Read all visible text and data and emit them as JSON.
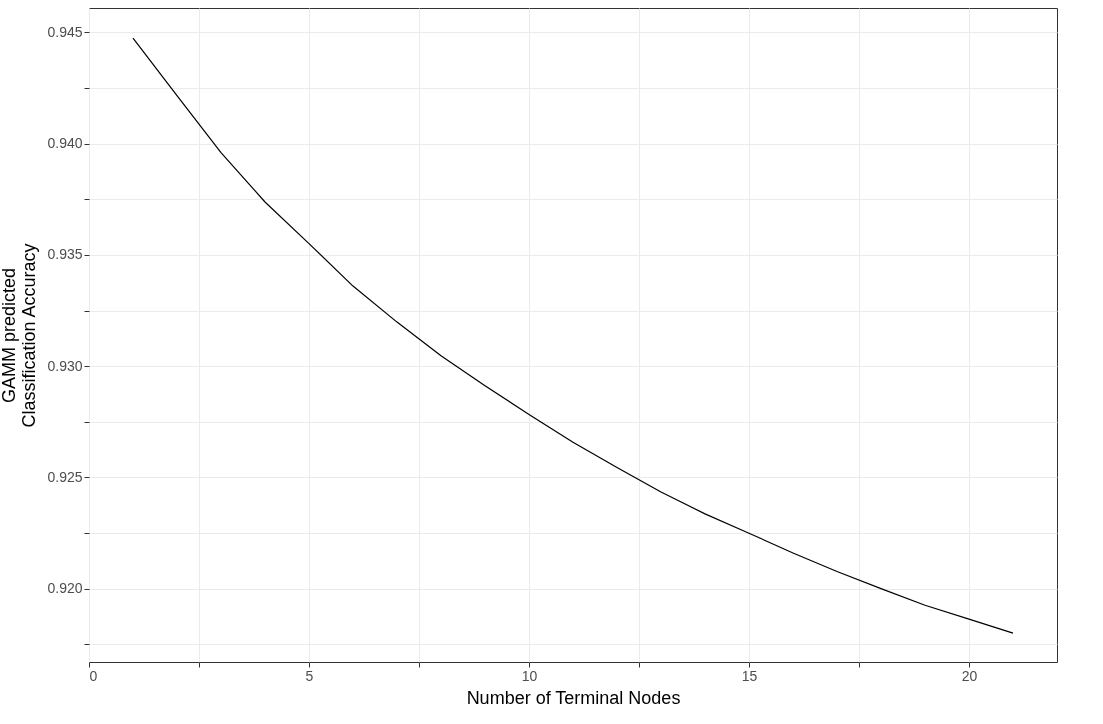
{
  "chart_data": {
    "type": "line",
    "xlabel": "Number of Terminal Nodes",
    "ylabel": "GAMM predicted\nClassification Accuracy",
    "x": [
      1,
      2,
      3,
      4,
      5,
      6,
      7,
      8,
      9,
      10,
      11,
      12,
      13,
      14,
      15,
      16,
      17,
      18,
      19,
      20,
      21
    ],
    "series": [
      {
        "color": "#000000",
        "values": [
          0.94475,
          0.94216,
          0.9396,
          0.93738,
          0.93551,
          0.9336,
          0.93198,
          0.93047,
          0.92912,
          0.92783,
          0.92658,
          0.92544,
          0.92434,
          0.92336,
          0.92249,
          0.9216,
          0.92077,
          0.92,
          0.91925,
          0.91863,
          0.918
        ]
      }
    ],
    "xlim": [
      0,
      22
    ],
    "ylim": [
      0.9167,
      0.9461
    ],
    "xticks": [
      0,
      {
        "value": 2.5,
        "label": null
      },
      5,
      {
        "value": 7.5,
        "label": null
      },
      10,
      {
        "value": 12.5,
        "label": null
      },
      15,
      {
        "value": 17.5,
        "label": null
      },
      20
    ],
    "yticks": [
      {
        "value": 0.9175,
        "label": null
      },
      {
        "value": 0.92,
        "label": "0.920"
      },
      {
        "value": 0.9225,
        "label": null
      },
      0.925,
      {
        "value": 0.9275,
        "label": null
      },
      {
        "value": 0.93,
        "label": "0.930"
      },
      {
        "value": 0.9325,
        "label": null
      },
      0.935,
      {
        "value": 0.9375,
        "label": null
      },
      {
        "value": 0.94,
        "label": "0.940"
      },
      {
        "value": 0.9425,
        "label": null
      },
      0.945
    ],
    "grid": true,
    "marker": "none",
    "line_style": "solid"
  }
}
